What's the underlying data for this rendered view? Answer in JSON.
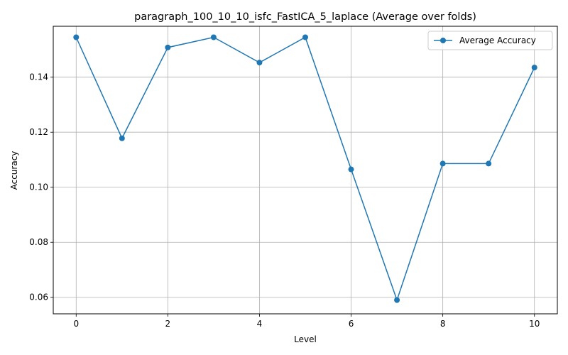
{
  "chart_data": {
    "type": "line",
    "title": "paragraph_100_10_10_isfc_FastICA_5_laplace (Average over folds)",
    "xlabel": "Level",
    "ylabel": "Accuracy",
    "x": [
      0,
      1,
      2,
      3,
      4,
      5,
      6,
      7,
      8,
      9,
      10
    ],
    "series": [
      {
        "name": "Average Accuracy",
        "color": "#1f77b4",
        "marker": "circle",
        "values": [
          0.1545,
          0.1178,
          0.1508,
          0.1545,
          0.1453,
          0.1545,
          0.1065,
          0.059,
          0.1086,
          0.1086,
          0.1435
        ]
      }
    ],
    "xlim": [
      -0.5,
      10.5
    ],
    "ylim": [
      0.054,
      0.1585
    ],
    "xticks": [
      0,
      2,
      4,
      6,
      8,
      10
    ],
    "yticks": [
      0.06,
      0.08,
      0.1,
      0.12,
      0.14
    ],
    "ytick_labels": [
      "0.06",
      "0.08",
      "0.10",
      "0.12",
      "0.14"
    ],
    "grid": true,
    "legend": "top-right"
  }
}
